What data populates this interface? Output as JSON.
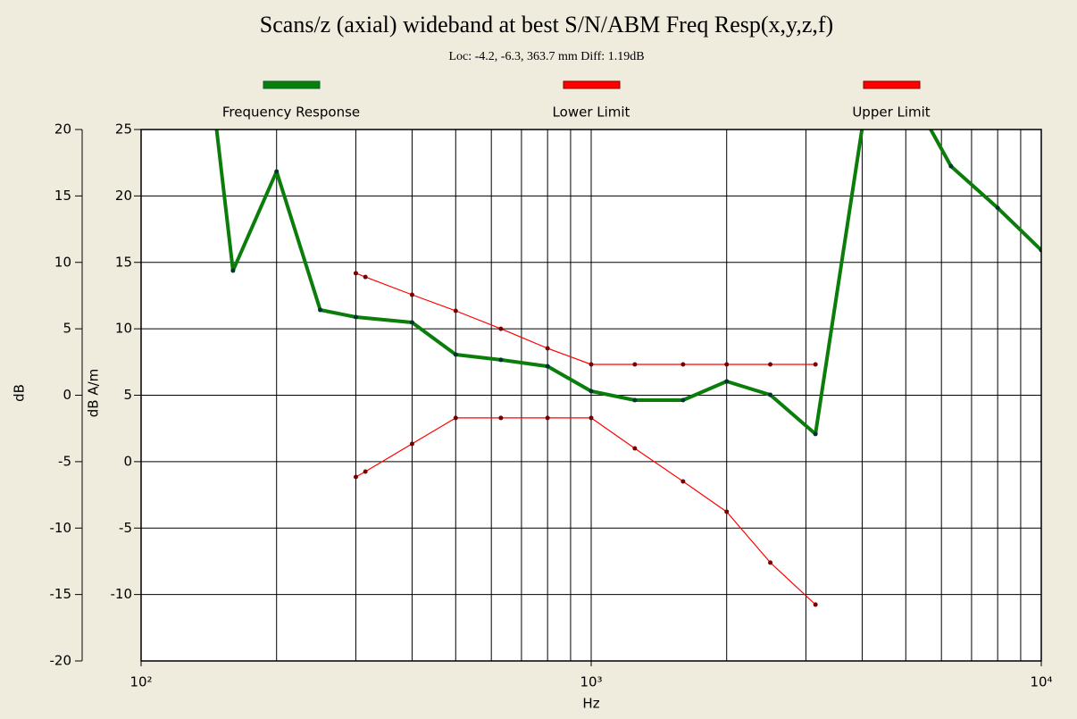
{
  "chart_data": {
    "type": "line",
    "title": "Scans/z (axial) wideband at best S/N/ABM Freq Resp(x,y,z,f)",
    "subtitle": "Loc: -4.2, -6.3, 363.7 mm Diff: 1.19dB",
    "x_label": "Hz",
    "y_label": "dB",
    "y2_label": "dB A/m",
    "log_x": true,
    "grid": true,
    "xlim": [
      100,
      10000
    ],
    "xticks": [
      {
        "value": 100,
        "label": "10²"
      },
      {
        "value": 1000,
        "label": "10³"
      },
      {
        "value": 10000,
        "label": "10⁴"
      }
    ],
    "xminorticks": [
      200,
      300,
      400,
      500,
      600,
      700,
      800,
      900,
      2000,
      3000,
      4000,
      5000,
      6000,
      7000,
      8000,
      9000
    ],
    "ylim": [
      -20,
      20
    ],
    "yticks": [
      -20,
      -15,
      -10,
      -5,
      0,
      5,
      10,
      15,
      20
    ],
    "y2lim": [
      -15,
      25
    ],
    "y2ticks": [
      -10,
      -5,
      0,
      5,
      10,
      15,
      20,
      25
    ],
    "series": [
      {
        "name": "Frequency Response",
        "color": "#0a7d0a",
        "axis": "y2",
        "x": [
          125,
          160,
          200,
          250,
          300,
          400,
          500,
          630,
          800,
          1000,
          1250,
          1600,
          2000,
          2500,
          3150,
          4000,
          5000,
          6300,
          8000,
          10000
        ],
        "values": [
          45.7,
          14.38,
          21.84,
          11.42,
          10.88,
          10.48,
          8.06,
          7.66,
          7.18,
          5.3,
          4.63,
          4.63,
          6.04,
          5.03,
          2.08,
          25.1,
          28.4,
          22.24,
          19.1,
          15.92
        ]
      },
      {
        "name": "Lower Limit",
        "color": "#ff0000",
        "axis": "y2",
        "x": [
          300,
          315,
          400,
          500,
          630,
          800,
          1000,
          1250,
          1600,
          2000,
          2500,
          3150
        ],
        "values": [
          -1.15,
          -0.75,
          1.34,
          3.29,
          3.29,
          3.29,
          3.29,
          1.0,
          -1.49,
          -3.77,
          -7.6,
          -10.76
        ]
      },
      {
        "name": "Upper Limit",
        "color": "#ff0000",
        "axis": "y2",
        "x": [
          300,
          315,
          400,
          500,
          630,
          800,
          1000,
          1250,
          1600,
          2000,
          2500,
          3150
        ],
        "values": [
          14.18,
          13.9,
          12.56,
          11.35,
          10.0,
          8.53,
          7.32,
          7.32,
          7.32,
          7.32,
          7.32,
          7.32
        ]
      }
    ]
  }
}
